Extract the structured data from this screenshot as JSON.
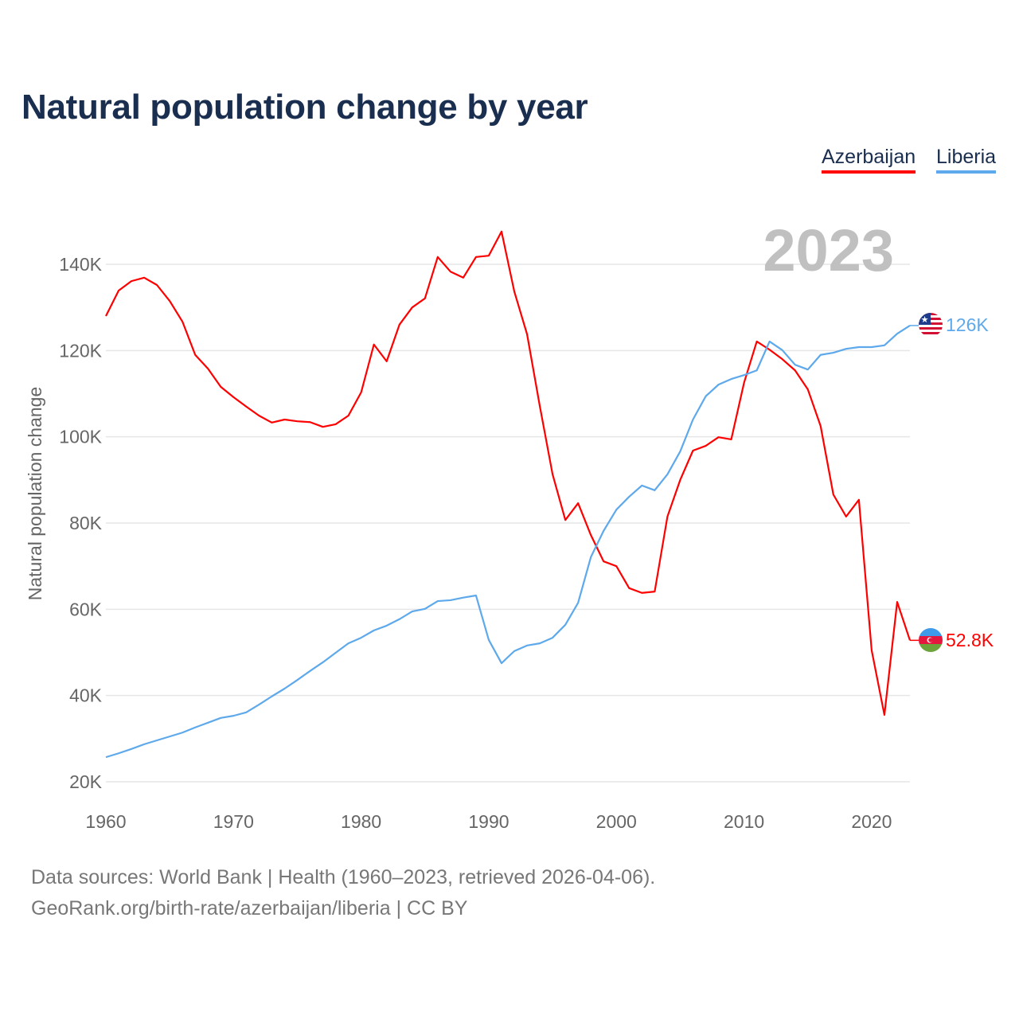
{
  "title": "Natural population change by year",
  "legend": [
    {
      "label": "Azerbaijan",
      "color": "#ff0000"
    },
    {
      "label": "Liberia",
      "color": "#5ea9eb"
    }
  ],
  "year_label": "2023",
  "end_labels": {
    "azerbaijan": "52.8K",
    "liberia": "126K"
  },
  "source_line1": "Data sources: World Bank | Health (1960–2023, retrieved 2026-04-06).",
  "source_line2": "GeoRank.org/birth-rate/azerbaijan/liberia | CC BY",
  "chart_data": {
    "type": "line",
    "title": "Natural population change by year",
    "xlabel": "",
    "ylabel": "Natural population change",
    "xlim": [
      1960,
      2023
    ],
    "ylim": [
      20000,
      150000
    ],
    "grid": true,
    "legend_position": "top-right",
    "x_ticks": [
      1960,
      1970,
      1980,
      1990,
      2000,
      2010,
      2020
    ],
    "y_ticks": [
      20000,
      40000,
      60000,
      80000,
      100000,
      120000,
      140000
    ],
    "y_tick_labels": [
      "20K",
      "40K",
      "60K",
      "80K",
      "100K",
      "120K",
      "140K"
    ],
    "x_start": 1960,
    "series": [
      {
        "name": "Azerbaijan",
        "color": "#ff0000",
        "values": [
          128000,
          133900,
          136100,
          136900,
          135200,
          131500,
          126700,
          119000,
          115800,
          111600,
          109200,
          107000,
          104900,
          103300,
          104000,
          103600,
          103400,
          102300,
          102900,
          104900,
          110300,
          121400,
          117500,
          126000,
          130000,
          132100,
          141700,
          138300,
          136900,
          141700,
          142000,
          147600,
          133700,
          123800,
          107100,
          91300,
          80700,
          84600,
          77200,
          71100,
          70000,
          64900,
          63800,
          64100,
          81500,
          90000,
          96800,
          97900,
          99900,
          99400,
          112500,
          122100,
          120200,
          118000,
          115400,
          111000,
          102500,
          86600,
          81500,
          85400,
          50500,
          35500,
          61700,
          52800
        ]
      },
      {
        "name": "Liberia",
        "color": "#5ea9eb",
        "values": [
          25700,
          26600,
          27600,
          28700,
          29600,
          30500,
          31400,
          32600,
          33700,
          34800,
          35300,
          36100,
          37900,
          39800,
          41600,
          43600,
          45700,
          47700,
          49900,
          52100,
          53400,
          55100,
          56200,
          57700,
          59500,
          60100,
          61900,
          62100,
          62700,
          63200,
          52900,
          47500,
          50300,
          51600,
          52100,
          53400,
          56400,
          61500,
          72100,
          78200,
          83100,
          86100,
          88700,
          87600,
          91300,
          96600,
          104000,
          109400,
          112100,
          113400,
          114300,
          115400,
          122100,
          120100,
          116700,
          115600,
          119000,
          119500,
          120400,
          120800,
          120800,
          121200,
          123900,
          125800
        ]
      }
    ]
  }
}
